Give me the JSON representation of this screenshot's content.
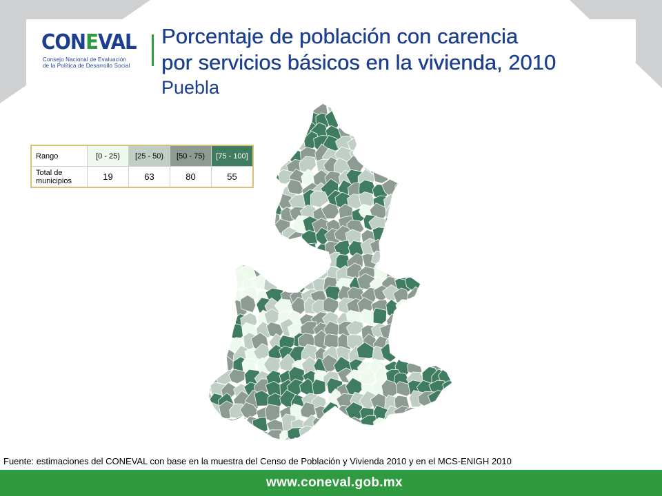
{
  "header": {
    "logo_word_a": "CON",
    "logo_word_b": "E",
    "logo_word_c": "VAL",
    "logo_line1": "Consejo Nacional de Evaluación",
    "logo_line2": "de la Política de Desarrollo Social",
    "title_line1": "Porcentaje de población con carencia",
    "title_line2": "por servicios básicos en la vivienda, 2010",
    "subtitle": "Puebla"
  },
  "legend": {
    "row1_label": "Rango",
    "row2_label": "Total de municipios",
    "classes": [
      {
        "range": "[0 - 25)",
        "count": "19",
        "color": "#eefaee",
        "text_color": "#000000"
      },
      {
        "range": "[25 - 50)",
        "count": "63",
        "color": "#bfcfc5",
        "text_color": "#000000"
      },
      {
        "range": "[50 - 75)",
        "count": "80",
        "color": "#8c9c92",
        "text_color": "#000000"
      },
      {
        "range": "[75 - 100]",
        "count": "55",
        "color": "#3f7c60",
        "text_color": "#ffffff"
      }
    ]
  },
  "map": {
    "state": "Puebla",
    "border_color": "#ffffff"
  },
  "source": "Fuente: estimaciones del CONEVAL con base en la muestra del Censo de Población y Vivienda 2010 y en el MCS-ENIGH 2010",
  "footer": {
    "url": "www.coneval.gob.mx",
    "color": "#2f9a3f"
  }
}
